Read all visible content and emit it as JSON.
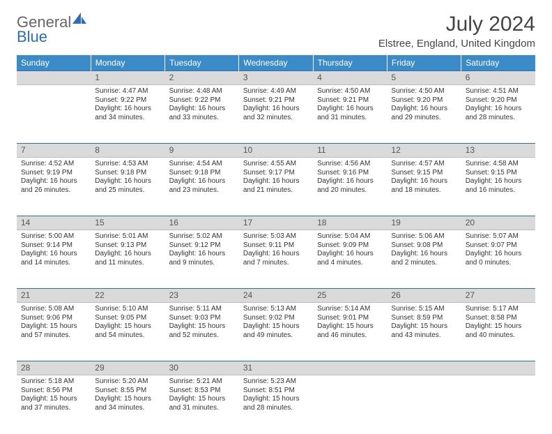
{
  "brand": {
    "part1": "General",
    "part2": "Blue"
  },
  "title": "July 2024",
  "location": "Elstree, England, United Kingdom",
  "colors": {
    "header_bg": "#3b8bc8",
    "header_text": "#ffffff",
    "daynum_bg": "#dadada",
    "row_border": "#2a6ebb",
    "text": "#333333",
    "brand_blue": "#2a6ebb"
  },
  "day_headers": [
    "Sunday",
    "Monday",
    "Tuesday",
    "Wednesday",
    "Thursday",
    "Friday",
    "Saturday"
  ],
  "weeks": [
    {
      "nums": [
        "",
        "1",
        "2",
        "3",
        "4",
        "5",
        "6"
      ],
      "cells": [
        {},
        {
          "sunrise": "Sunrise: 4:47 AM",
          "sunset": "Sunset: 9:22 PM",
          "day1": "Daylight: 16 hours",
          "day2": "and 34 minutes."
        },
        {
          "sunrise": "Sunrise: 4:48 AM",
          "sunset": "Sunset: 9:22 PM",
          "day1": "Daylight: 16 hours",
          "day2": "and 33 minutes."
        },
        {
          "sunrise": "Sunrise: 4:49 AM",
          "sunset": "Sunset: 9:21 PM",
          "day1": "Daylight: 16 hours",
          "day2": "and 32 minutes."
        },
        {
          "sunrise": "Sunrise: 4:50 AM",
          "sunset": "Sunset: 9:21 PM",
          "day1": "Daylight: 16 hours",
          "day2": "and 31 minutes."
        },
        {
          "sunrise": "Sunrise: 4:50 AM",
          "sunset": "Sunset: 9:20 PM",
          "day1": "Daylight: 16 hours",
          "day2": "and 29 minutes."
        },
        {
          "sunrise": "Sunrise: 4:51 AM",
          "sunset": "Sunset: 9:20 PM",
          "day1": "Daylight: 16 hours",
          "day2": "and 28 minutes."
        }
      ]
    },
    {
      "nums": [
        "7",
        "8",
        "9",
        "10",
        "11",
        "12",
        "13"
      ],
      "cells": [
        {
          "sunrise": "Sunrise: 4:52 AM",
          "sunset": "Sunset: 9:19 PM",
          "day1": "Daylight: 16 hours",
          "day2": "and 26 minutes."
        },
        {
          "sunrise": "Sunrise: 4:53 AM",
          "sunset": "Sunset: 9:18 PM",
          "day1": "Daylight: 16 hours",
          "day2": "and 25 minutes."
        },
        {
          "sunrise": "Sunrise: 4:54 AM",
          "sunset": "Sunset: 9:18 PM",
          "day1": "Daylight: 16 hours",
          "day2": "and 23 minutes."
        },
        {
          "sunrise": "Sunrise: 4:55 AM",
          "sunset": "Sunset: 9:17 PM",
          "day1": "Daylight: 16 hours",
          "day2": "and 21 minutes."
        },
        {
          "sunrise": "Sunrise: 4:56 AM",
          "sunset": "Sunset: 9:16 PM",
          "day1": "Daylight: 16 hours",
          "day2": "and 20 minutes."
        },
        {
          "sunrise": "Sunrise: 4:57 AM",
          "sunset": "Sunset: 9:15 PM",
          "day1": "Daylight: 16 hours",
          "day2": "and 18 minutes."
        },
        {
          "sunrise": "Sunrise: 4:58 AM",
          "sunset": "Sunset: 9:15 PM",
          "day1": "Daylight: 16 hours",
          "day2": "and 16 minutes."
        }
      ]
    },
    {
      "nums": [
        "14",
        "15",
        "16",
        "17",
        "18",
        "19",
        "20"
      ],
      "cells": [
        {
          "sunrise": "Sunrise: 5:00 AM",
          "sunset": "Sunset: 9:14 PM",
          "day1": "Daylight: 16 hours",
          "day2": "and 14 minutes."
        },
        {
          "sunrise": "Sunrise: 5:01 AM",
          "sunset": "Sunset: 9:13 PM",
          "day1": "Daylight: 16 hours",
          "day2": "and 11 minutes."
        },
        {
          "sunrise": "Sunrise: 5:02 AM",
          "sunset": "Sunset: 9:12 PM",
          "day1": "Daylight: 16 hours",
          "day2": "and 9 minutes."
        },
        {
          "sunrise": "Sunrise: 5:03 AM",
          "sunset": "Sunset: 9:11 PM",
          "day1": "Daylight: 16 hours",
          "day2": "and 7 minutes."
        },
        {
          "sunrise": "Sunrise: 5:04 AM",
          "sunset": "Sunset: 9:09 PM",
          "day1": "Daylight: 16 hours",
          "day2": "and 4 minutes."
        },
        {
          "sunrise": "Sunrise: 5:06 AM",
          "sunset": "Sunset: 9:08 PM",
          "day1": "Daylight: 16 hours",
          "day2": "and 2 minutes."
        },
        {
          "sunrise": "Sunrise: 5:07 AM",
          "sunset": "Sunset: 9:07 PM",
          "day1": "Daylight: 16 hours",
          "day2": "and 0 minutes."
        }
      ]
    },
    {
      "nums": [
        "21",
        "22",
        "23",
        "24",
        "25",
        "26",
        "27"
      ],
      "cells": [
        {
          "sunrise": "Sunrise: 5:08 AM",
          "sunset": "Sunset: 9:06 PM",
          "day1": "Daylight: 15 hours",
          "day2": "and 57 minutes."
        },
        {
          "sunrise": "Sunrise: 5:10 AM",
          "sunset": "Sunset: 9:05 PM",
          "day1": "Daylight: 15 hours",
          "day2": "and 54 minutes."
        },
        {
          "sunrise": "Sunrise: 5:11 AM",
          "sunset": "Sunset: 9:03 PM",
          "day1": "Daylight: 15 hours",
          "day2": "and 52 minutes."
        },
        {
          "sunrise": "Sunrise: 5:13 AM",
          "sunset": "Sunset: 9:02 PM",
          "day1": "Daylight: 15 hours",
          "day2": "and 49 minutes."
        },
        {
          "sunrise": "Sunrise: 5:14 AM",
          "sunset": "Sunset: 9:01 PM",
          "day1": "Daylight: 15 hours",
          "day2": "and 46 minutes."
        },
        {
          "sunrise": "Sunrise: 5:15 AM",
          "sunset": "Sunset: 8:59 PM",
          "day1": "Daylight: 15 hours",
          "day2": "and 43 minutes."
        },
        {
          "sunrise": "Sunrise: 5:17 AM",
          "sunset": "Sunset: 8:58 PM",
          "day1": "Daylight: 15 hours",
          "day2": "and 40 minutes."
        }
      ]
    },
    {
      "nums": [
        "28",
        "29",
        "30",
        "31",
        "",
        "",
        ""
      ],
      "cells": [
        {
          "sunrise": "Sunrise: 5:18 AM",
          "sunset": "Sunset: 8:56 PM",
          "day1": "Daylight: 15 hours",
          "day2": "and 37 minutes."
        },
        {
          "sunrise": "Sunrise: 5:20 AM",
          "sunset": "Sunset: 8:55 PM",
          "day1": "Daylight: 15 hours",
          "day2": "and 34 minutes."
        },
        {
          "sunrise": "Sunrise: 5:21 AM",
          "sunset": "Sunset: 8:53 PM",
          "day1": "Daylight: 15 hours",
          "day2": "and 31 minutes."
        },
        {
          "sunrise": "Sunrise: 5:23 AM",
          "sunset": "Sunset: 8:51 PM",
          "day1": "Daylight: 15 hours",
          "day2": "and 28 minutes."
        },
        {},
        {},
        {}
      ]
    }
  ]
}
